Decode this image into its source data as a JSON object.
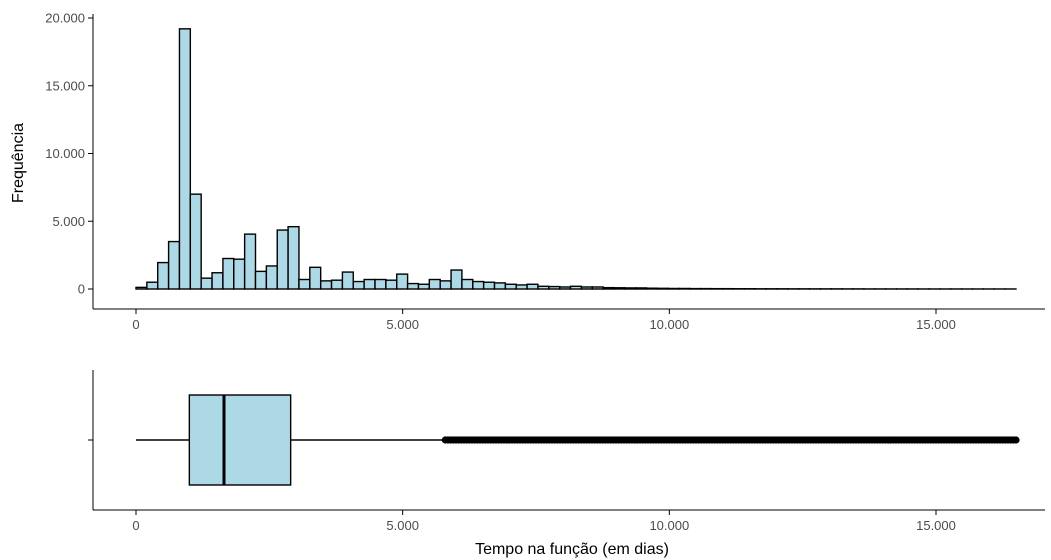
{
  "colors": {
    "fill": "#add8e6",
    "stroke": "#000000",
    "axis": "#000000",
    "tick_text": "#4d4d4d"
  },
  "chart_data": [
    {
      "type": "histogram",
      "ylabel": "Frequência",
      "xlim": [
        0,
        16500
      ],
      "ylim": [
        0,
        20000
      ],
      "x_ticks": [
        0,
        5000,
        10000,
        15000
      ],
      "x_tick_labels": [
        "0",
        "5.000",
        "10.000",
        "15.000"
      ],
      "y_ticks": [
        0,
        5000,
        10000,
        15000,
        20000
      ],
      "y_tick_labels": [
        "0",
        "5.000",
        "10.000",
        "15.000",
        "20.000"
      ],
      "grid": false,
      "bin_width": 203.7,
      "bins_start": 0,
      "values": [
        120,
        500,
        1950,
        3500,
        19200,
        7000,
        800,
        1200,
        2250,
        2200,
        4050,
        1300,
        1700,
        4350,
        4600,
        700,
        1600,
        600,
        650,
        1250,
        550,
        700,
        700,
        650,
        1100,
        400,
        350,
        700,
        600,
        1400,
        700,
        550,
        500,
        450,
        350,
        300,
        350,
        200,
        180,
        150,
        200,
        150,
        150,
        100,
        90,
        80,
        80,
        60,
        50,
        40,
        40,
        30,
        30,
        25,
        25,
        20,
        20,
        15,
        15,
        15,
        12,
        12,
        10,
        10,
        10,
        8,
        8,
        6,
        6,
        5,
        5,
        5,
        4,
        4,
        3,
        3,
        3,
        3,
        2,
        2,
        2
      ]
    },
    {
      "type": "boxplot",
      "xlabel": "Tempo na função (em dias)",
      "xlim": [
        0,
        16500
      ],
      "x_ticks": [
        0,
        5000,
        10000,
        15000
      ],
      "x_tick_labels": [
        "0",
        "5.000",
        "10.000",
        "15.000"
      ],
      "grid": false,
      "whisker_low": 0,
      "q1": 1000,
      "median": 1650,
      "q3": 2900,
      "whisker_high": 5750,
      "outliers": [
        5800,
        5850,
        5900,
        5950,
        6000,
        6050,
        6100,
        6150,
        6200,
        6250,
        6300,
        6350,
        6400,
        6450,
        6500,
        6550,
        6600,
        6650,
        6700,
        6750,
        6800,
        6850,
        6900,
        6950,
        7000,
        7050,
        7100,
        7150,
        7200,
        7250,
        7300,
        7350,
        7400,
        7450,
        7500,
        7550,
        7600,
        7650,
        7700,
        7750,
        7800,
        7850,
        7900,
        7950,
        8000,
        8050,
        8100,
        8150,
        8200,
        8250,
        8300,
        8350,
        8400,
        8450,
        8500,
        8550,
        8600,
        8650,
        8700,
        8750,
        8800,
        8850,
        8900,
        8950,
        9000,
        9050,
        9100,
        9150,
        9200,
        9250,
        9300,
        9350,
        9400,
        9450,
        9500,
        9550,
        9600,
        9650,
        9700,
        9750,
        9800,
        9850,
        9900,
        9950,
        10000,
        10050,
        10100,
        10150,
        10200,
        10250,
        10300,
        10350,
        10400,
        10450,
        10500,
        10550,
        10600,
        10650,
        10700,
        10750,
        10800,
        10850,
        10900,
        10950,
        11000,
        11050,
        11100,
        11150,
        11200,
        11250,
        11300,
        11350,
        11400,
        11450,
        11500,
        11550,
        11600,
        11650,
        11700,
        11750,
        11800,
        11850,
        11900,
        11950,
        12000,
        12050,
        12100,
        12150,
        12200,
        12250,
        12300,
        12350,
        12400,
        12450,
        12500,
        12550,
        12600,
        12650,
        12700,
        12750,
        12800,
        12850,
        12900,
        12950,
        13000,
        13050,
        13100,
        13150,
        13200,
        13250,
        13300,
        13350,
        13400,
        13450,
        13500,
        13550,
        13600,
        13650,
        13700,
        13750,
        13800,
        13850,
        13900,
        13950,
        14000,
        14050,
        14100,
        14150,
        14200,
        14250,
        14300,
        14350,
        14400,
        14450,
        14500,
        14550,
        14600,
        14650,
        14700,
        14750,
        14800,
        14850,
        14900,
        14950,
        15000,
        15050,
        15100,
        15150,
        15200,
        15250,
        15300,
        15350,
        15400,
        15450,
        15500,
        15550,
        15600,
        15650,
        15700,
        15750,
        15800,
        15850,
        15900,
        15950,
        16000,
        16050,
        16100,
        16150,
        16200,
        16250,
        16300,
        16350,
        16400,
        16450,
        16500
      ]
    }
  ]
}
